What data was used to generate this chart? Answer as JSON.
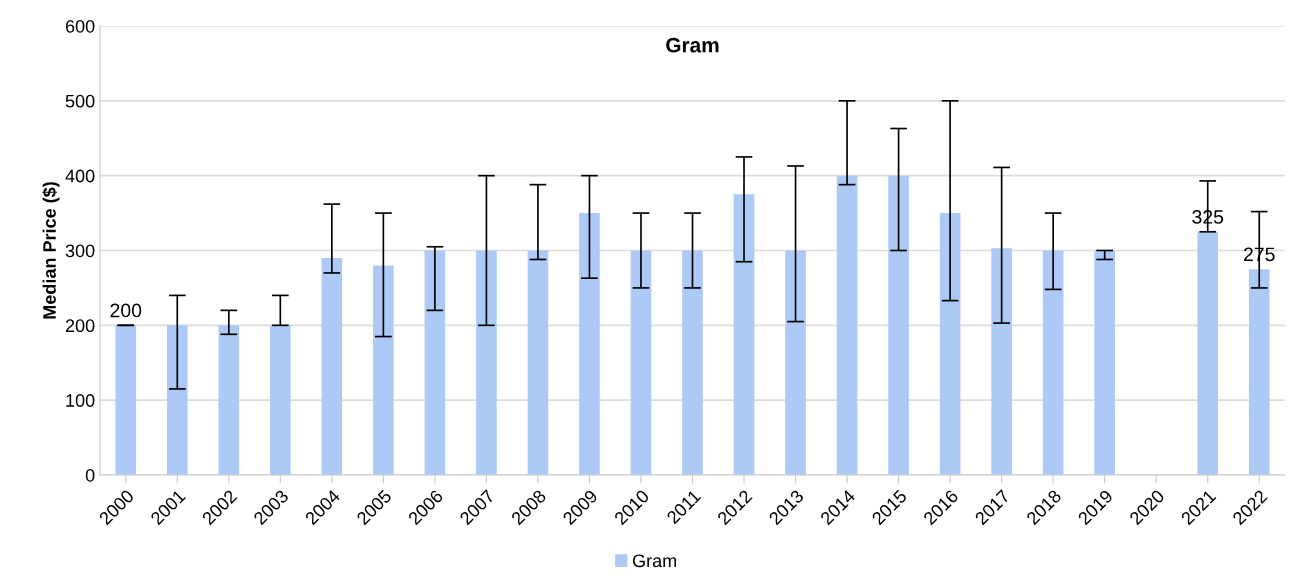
{
  "chart_data": {
    "type": "bar",
    "title": "Gram",
    "ylabel": "Median Price ($)",
    "categories": [
      "2000",
      "2001",
      "2002",
      "2003",
      "2004",
      "2005",
      "2006",
      "2007",
      "2008",
      "2009",
      "2010",
      "2011",
      "2012",
      "2013",
      "2014",
      "2015",
      "2016",
      "2017",
      "2018",
      "2019",
      "2020",
      "2021",
      "2022"
    ],
    "series": [
      {
        "name": "Gram",
        "color": "#adcaf6",
        "values": [
          200,
          200,
          200,
          200,
          290,
          280,
          300,
          300,
          300,
          350,
          300,
          300,
          375,
          300,
          400,
          400,
          350,
          303,
          300,
          300,
          null,
          325,
          275
        ],
        "errors": [
          [
            200,
            200
          ],
          [
            115,
            240
          ],
          [
            188,
            220
          ],
          [
            200,
            240
          ],
          [
            270,
            362
          ],
          [
            185,
            350
          ],
          [
            220,
            305
          ],
          [
            200,
            400
          ],
          [
            288,
            388
          ],
          [
            263,
            400
          ],
          [
            250,
            350
          ],
          [
            250,
            350
          ],
          [
            285,
            425
          ],
          [
            205,
            413
          ],
          [
            388,
            500
          ],
          [
            300,
            463
          ],
          [
            233,
            500
          ],
          [
            203,
            411
          ],
          [
            248,
            350
          ],
          [
            288,
            300
          ],
          null,
          [
            325,
            393
          ],
          [
            250,
            352
          ]
        ],
        "value_labels": [
          "200",
          null,
          null,
          null,
          null,
          null,
          null,
          null,
          null,
          null,
          null,
          null,
          null,
          null,
          null,
          null,
          null,
          null,
          null,
          null,
          null,
          "325",
          "275"
        ]
      }
    ],
    "ylim": [
      0,
      600
    ],
    "yticks": [
      0,
      100,
      200,
      300,
      400,
      500,
      600
    ],
    "grid": "y",
    "legend": "bottom"
  }
}
